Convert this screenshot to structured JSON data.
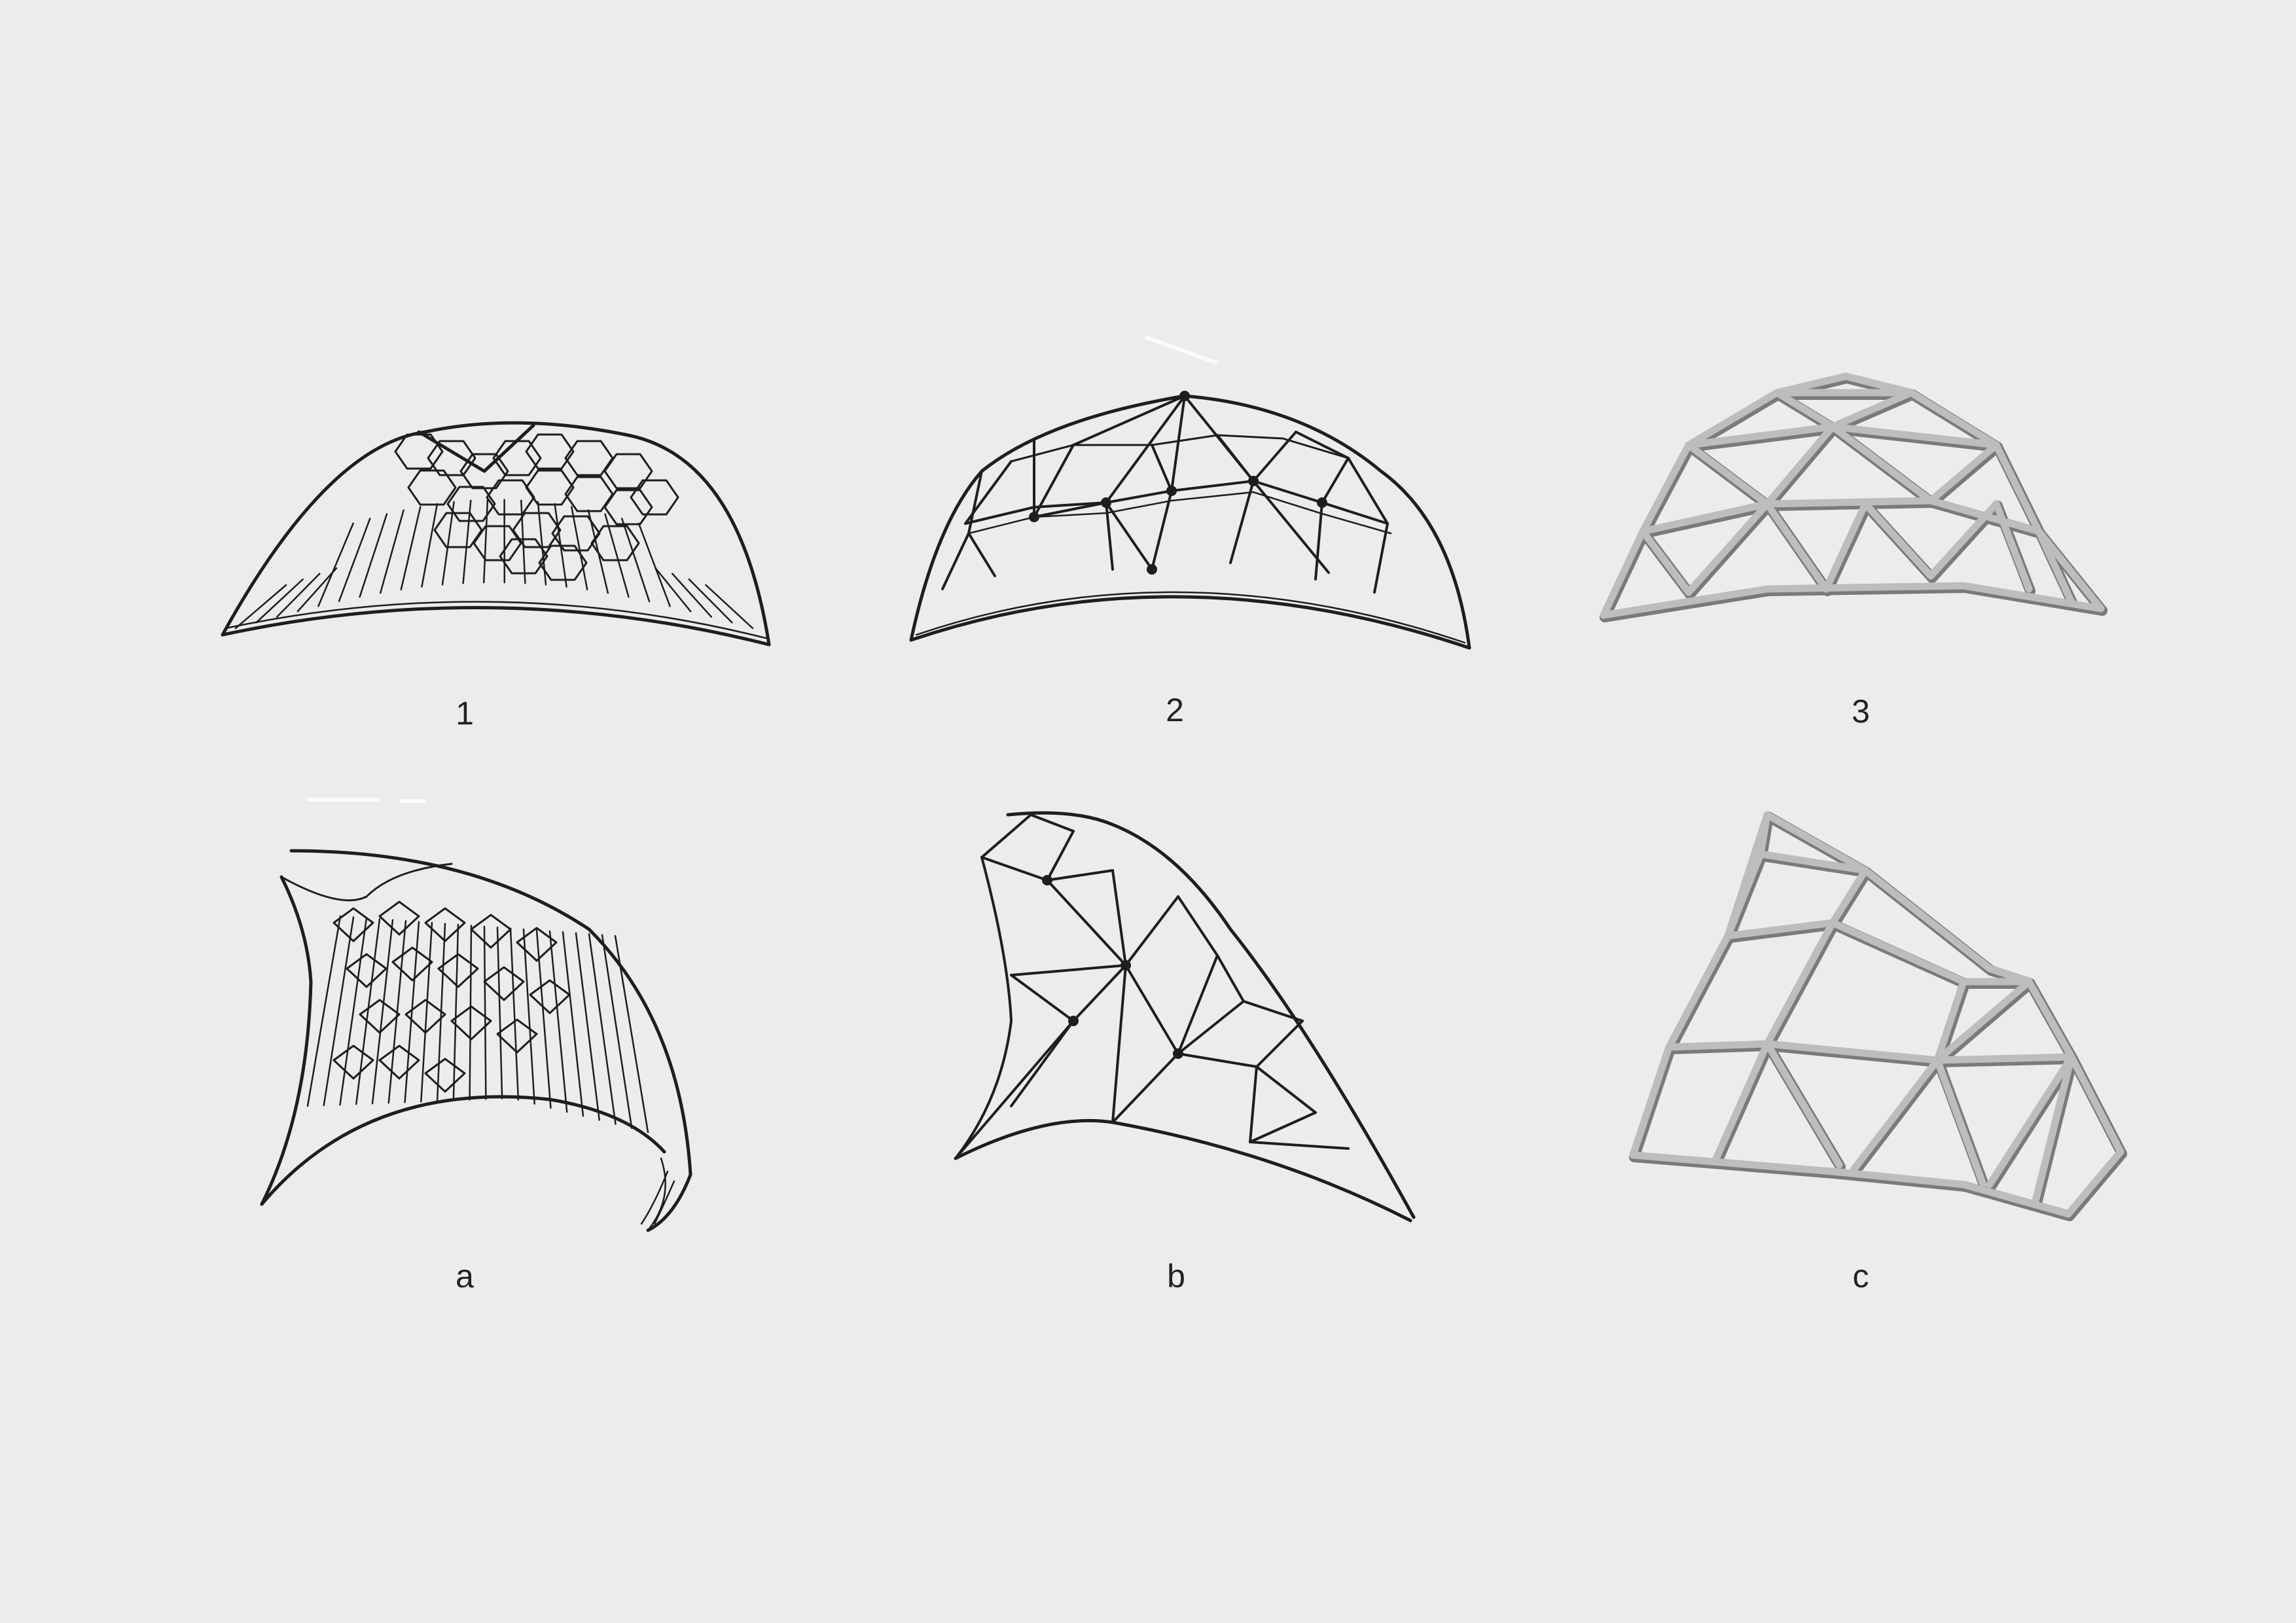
{
  "figures": [
    {
      "id": "fig-1",
      "label": "1",
      "style": "sketch",
      "pattern": "cell-hatch",
      "shape": "dome"
    },
    {
      "id": "fig-2",
      "label": "2",
      "style": "sketch",
      "pattern": "triangulated-grid",
      "shape": "dome"
    },
    {
      "id": "fig-3",
      "label": "3",
      "style": "render",
      "pattern": "triangulated-grid",
      "shape": "dome"
    },
    {
      "id": "fig-a",
      "label": "a",
      "style": "sketch",
      "pattern": "cell-hatch",
      "shape": "shell-segment"
    },
    {
      "id": "fig-b",
      "label": "b",
      "style": "sketch",
      "pattern": "triangulated-grid",
      "shape": "shell-segment"
    },
    {
      "id": "fig-c",
      "label": "c",
      "style": "render",
      "pattern": "triangulated-grid",
      "shape": "shell-segment"
    }
  ],
  "colors": {
    "background": "#ececec",
    "ink": "#1e1e1e",
    "strut_light": "#bdbdbd",
    "strut_dark": "#7a7a7a",
    "label": "#222222"
  }
}
